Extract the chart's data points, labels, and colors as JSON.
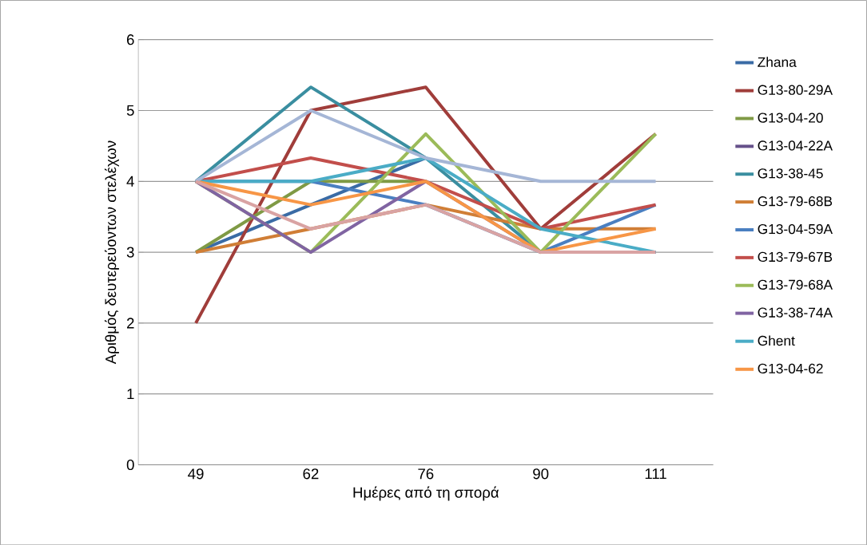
{
  "chart_data": {
    "type": "line",
    "xlabel": "Ημέρες από τη σπορά",
    "ylabel": "Αριθμός δευτερεύοντων στελέχων",
    "categories": [
      "49",
      "62",
      "76",
      "90",
      "111"
    ],
    "ylim": [
      0,
      6
    ],
    "yticks": [
      0,
      1,
      2,
      3,
      4,
      5,
      6
    ],
    "grid": "y",
    "legend": "right",
    "marker": "none",
    "line_style": "solid",
    "series": [
      {
        "name": "Zhana",
        "color": "#3a6ba5",
        "values": [
          3,
          3.67,
          4.33,
          null,
          null
        ]
      },
      {
        "name": "G13-80-29A",
        "color": "#a03d3a",
        "values": [
          2,
          5,
          5.33,
          3.33,
          4.67
        ]
      },
      {
        "name": "G13-04-20",
        "color": "#7f9a45",
        "values": [
          3,
          4,
          4,
          null,
          null
        ]
      },
      {
        "name": "G13-04-22A",
        "color": "#65508a",
        "values": [
          null,
          null,
          null,
          null,
          null
        ]
      },
      {
        "name": "G13-38-45",
        "color": "#3a8ea0",
        "values": [
          4,
          5.33,
          4.33,
          3,
          3
        ]
      },
      {
        "name": "G13-79-68B",
        "color": "#d07e36",
        "values": [
          3,
          3.33,
          3.67,
          3.33,
          3.33
        ]
      },
      {
        "name": "G13-04-59A",
        "color": "#4a7fc1",
        "values": [
          4,
          4,
          3.67,
          3,
          3.67
        ]
      },
      {
        "name": "G13-79-67B",
        "color": "#c24e4b",
        "values": [
          4,
          4.33,
          4,
          3.33,
          3.67
        ]
      },
      {
        "name": "G13-79-68A",
        "color": "#9bbb59",
        "values": [
          4,
          3,
          4.67,
          3,
          4.67
        ]
      },
      {
        "name": "G13-38-74A",
        "color": "#8064a2",
        "values": [
          4,
          3,
          4,
          3,
          3
        ]
      },
      {
        "name": "Ghent",
        "color": "#4aacc6",
        "values": [
          4,
          4,
          4.33,
          3.33,
          3
        ]
      },
      {
        "name": "G13-04-62",
        "color": "#f79646",
        "values": [
          4,
          3.67,
          4,
          3,
          3.33
        ]
      },
      {
        "color": "#a5b6d6",
        "values": [
          4,
          5,
          4.33,
          4,
          4
        ]
      },
      {
        "color": "#d9a3a3",
        "values": [
          4,
          3.33,
          3.67,
          3,
          3
        ]
      }
    ]
  }
}
